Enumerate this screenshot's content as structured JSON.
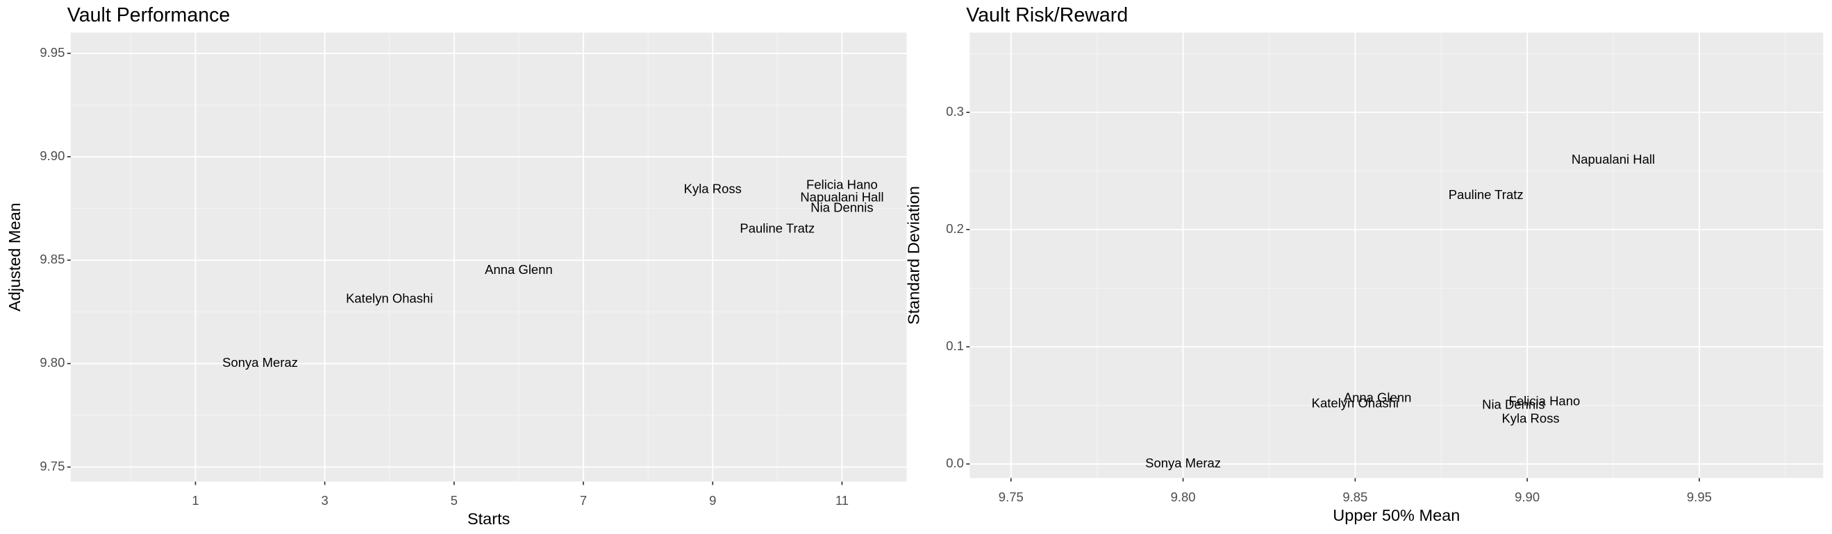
{
  "chart_data": [
    {
      "type": "scatter",
      "title": "Vault Performance",
      "x_label": "Starts",
      "y_label": "Adjusted Mean",
      "xlim": [
        -0.93,
        12.0
      ],
      "ylim": [
        9.743,
        9.96
      ],
      "xticks": [
        1,
        3,
        5,
        7,
        9,
        11
      ],
      "yticks": [
        {
          "value": 9.75,
          "label": "9.75"
        },
        {
          "value": 9.8,
          "label": "9.80"
        },
        {
          "value": 9.85,
          "label": "9.85"
        },
        {
          "value": 9.9,
          "label": "9.90"
        },
        {
          "value": 9.95,
          "label": "9.95"
        }
      ],
      "xminor": [
        0,
        2,
        4,
        6,
        8,
        10
      ],
      "yminor": [
        9.775,
        9.825,
        9.875,
        9.925
      ],
      "grid": true,
      "points": [
        {
          "label": "Sonya Meraz",
          "x": 2,
          "y": 9.8
        },
        {
          "label": "Katelyn Ohashi",
          "x": 4,
          "y": 9.831
        },
        {
          "label": "Anna Glenn",
          "x": 6,
          "y": 9.845
        },
        {
          "label": "Kyla Ross",
          "x": 9,
          "y": 9.884
        },
        {
          "label": "Pauline Tratz",
          "x": 10,
          "y": 9.865
        },
        {
          "label": "Felicia Hano",
          "x": 11,
          "y": 9.886
        },
        {
          "label": "Napualani Hall",
          "x": 11,
          "y": 9.88
        },
        {
          "label": "Nia Dennis",
          "x": 11,
          "y": 9.875
        }
      ]
    },
    {
      "type": "scatter",
      "title": "Vault Risk/Reward",
      "x_label": "Upper 50% Mean",
      "y_label": "Standard Deviation",
      "xlim": [
        9.738,
        9.986
      ],
      "ylim": [
        -0.012,
        0.368
      ],
      "xticks": [
        {
          "value": 9.75,
          "label": "9.75"
        },
        {
          "value": 9.8,
          "label": "9.80"
        },
        {
          "value": 9.85,
          "label": "9.85"
        },
        {
          "value": 9.9,
          "label": "9.90"
        },
        {
          "value": 9.95,
          "label": "9.95"
        }
      ],
      "yticks": [
        {
          "value": 0,
          "label": "0.0"
        },
        0.1,
        0.2,
        0.3
      ],
      "xminor": [
        9.775,
        9.825,
        9.875,
        9.925,
        9.975
      ],
      "yminor": [
        0.05,
        0.15,
        0.25,
        0.35
      ],
      "grid": true,
      "points": [
        {
          "label": "Sonya Meraz",
          "x": 9.8,
          "y": 0.0
        },
        {
          "label": "Katelyn Ohashi",
          "x": 9.85,
          "y": 0.051
        },
        {
          "label": "Anna Glenn",
          "x": 9.8565,
          "y": 0.056
        },
        {
          "label": "Nia Dennis",
          "x": 9.896,
          "y": 0.05
        },
        {
          "label": "Felicia Hano",
          "x": 9.905,
          "y": 0.053
        },
        {
          "label": "Kyla Ross",
          "x": 9.901,
          "y": 0.038
        },
        {
          "label": "Pauline Tratz",
          "x": 9.888,
          "y": 0.229
        },
        {
          "label": "Napualani Hall",
          "x": 9.925,
          "y": 0.259
        }
      ]
    }
  ]
}
